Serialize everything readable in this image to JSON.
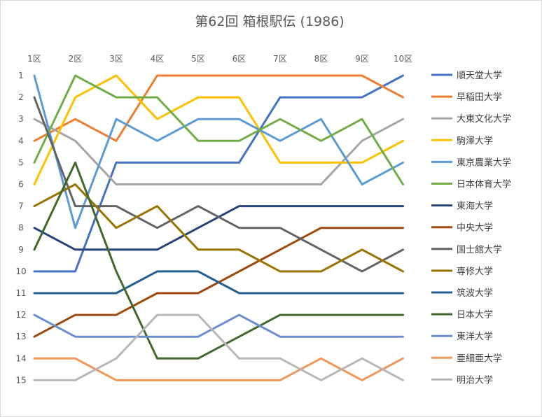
{
  "chart_data": {
    "type": "line",
    "title": "第62回 箱根駅伝 (1986)",
    "categories": [
      "1区",
      "2区",
      "3区",
      "4区",
      "5区",
      "6区",
      "7区",
      "8区",
      "9区",
      "10区"
    ],
    "y_ticks": [
      "1",
      "2",
      "3",
      "4",
      "5",
      "6",
      "7",
      "8",
      "9",
      "10",
      "11",
      "12",
      "13",
      "14",
      "15"
    ],
    "ylim": [
      1,
      15
    ],
    "y_reversed": true,
    "grid": false,
    "legend_position": "right",
    "series": [
      {
        "name": "順天堂大学",
        "color": "#4472C4",
        "values": [
          10,
          10,
          5,
          5,
          5,
          5,
          2,
          2,
          2,
          1
        ]
      },
      {
        "name": "早稲田大学",
        "color": "#ED7D31",
        "values": [
          4,
          3,
          4,
          1,
          1,
          1,
          1,
          1,
          1,
          2
        ]
      },
      {
        "name": "大東文化大学",
        "color": "#A5A5A5",
        "values": [
          3,
          4,
          6,
          6,
          6,
          6,
          6,
          6,
          4,
          3
        ]
      },
      {
        "name": "駒澤大学",
        "color": "#FFC000",
        "values": [
          6,
          2,
          1,
          3,
          2,
          2,
          5,
          5,
          5,
          4
        ]
      },
      {
        "name": "東京農業大学",
        "color": "#5B9BD5",
        "values": [
          1,
          8,
          3,
          4,
          3,
          3,
          4,
          3,
          6,
          5
        ]
      },
      {
        "name": "日本体育大学",
        "color": "#70AD47",
        "values": [
          5,
          1,
          2,
          2,
          4,
          4,
          3,
          4,
          3,
          6
        ]
      },
      {
        "name": "東海大学",
        "color": "#264478",
        "values": [
          8,
          9,
          9,
          9,
          8,
          7,
          7,
          7,
          7,
          7
        ]
      },
      {
        "name": "中央大学",
        "color": "#9E480E",
        "values": [
          13,
          12,
          12,
          11,
          11,
          10,
          9,
          8,
          8,
          8
        ]
      },
      {
        "name": "国士舘大学",
        "color": "#636363",
        "values": [
          2,
          7,
          7,
          8,
          7,
          8,
          8,
          9,
          10,
          9
        ]
      },
      {
        "name": "専修大学",
        "color": "#997300",
        "values": [
          7,
          6,
          8,
          7,
          9,
          9,
          10,
          10,
          9,
          10
        ]
      },
      {
        "name": "筑波大学",
        "color": "#255E91",
        "values": [
          11,
          11,
          11,
          10,
          10,
          11,
          11,
          11,
          11,
          11
        ]
      },
      {
        "name": "日本大学",
        "color": "#43682B",
        "values": [
          9,
          5,
          10,
          14,
          14,
          13,
          12,
          12,
          12,
          12
        ]
      },
      {
        "name": "東洋大学",
        "color": "#698ED0",
        "values": [
          12,
          13,
          13,
          13,
          13,
          12,
          13,
          13,
          13,
          13
        ]
      },
      {
        "name": "亜細亜大学",
        "color": "#F1975A",
        "values": [
          14,
          14,
          15,
          15,
          15,
          15,
          15,
          14,
          15,
          14
        ]
      },
      {
        "name": "明治大学",
        "color": "#B7B7B7",
        "values": [
          15,
          15,
          14,
          12,
          12,
          14,
          14,
          15,
          14,
          15
        ]
      }
    ]
  }
}
